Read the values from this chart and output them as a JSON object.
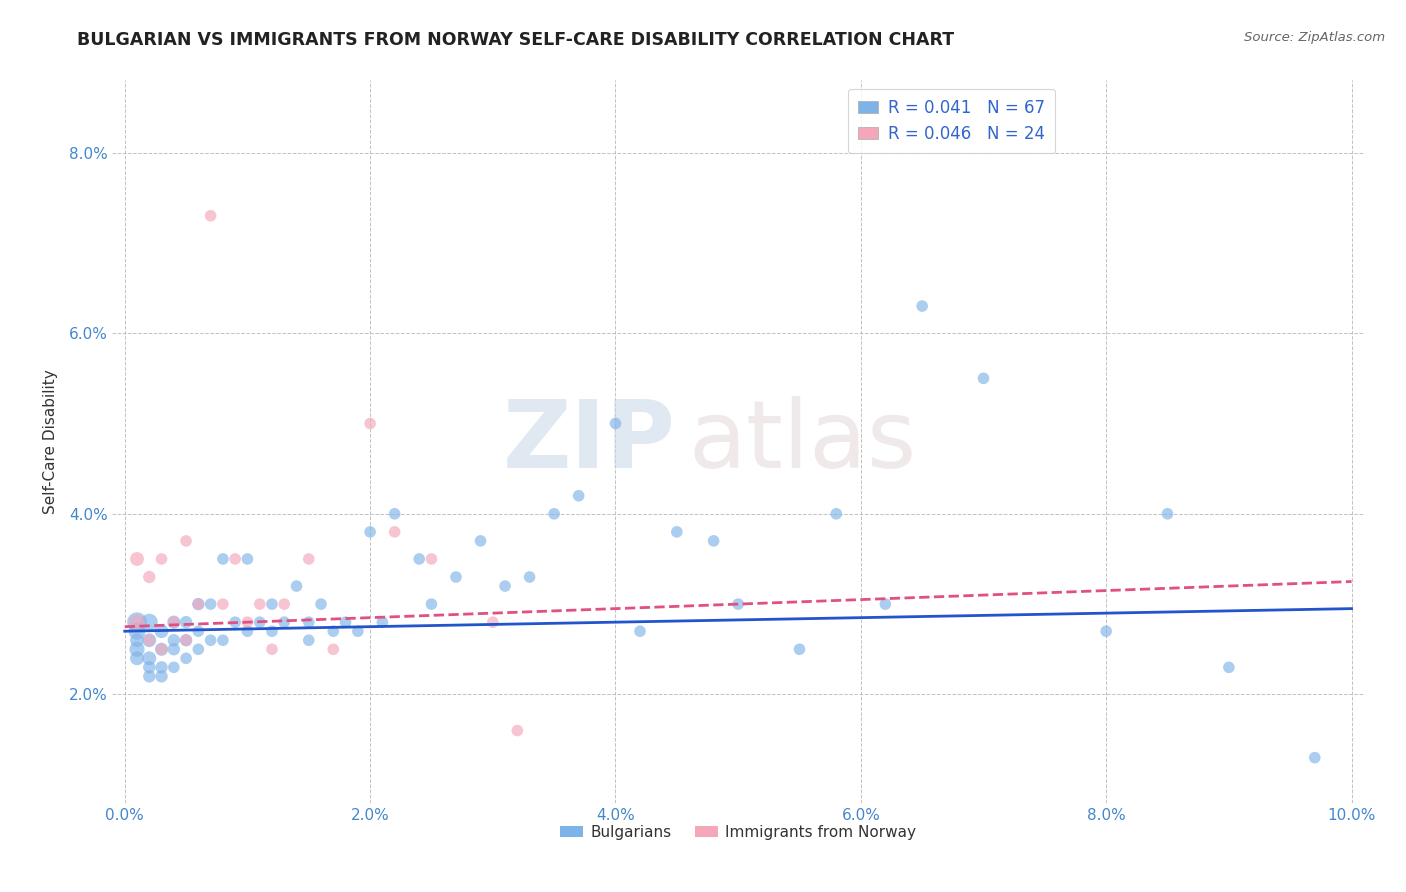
{
  "title": "BULGARIAN VS IMMIGRANTS FROM NORWAY SELF-CARE DISABILITY CORRELATION CHART",
  "source": "Source: ZipAtlas.com",
  "ylabel": "Self-Care Disability",
  "xlim": [
    -0.001,
    0.101
  ],
  "ylim": [
    0.008,
    0.088
  ],
  "xticks": [
    0.0,
    0.02,
    0.04,
    0.06,
    0.08,
    0.1
  ],
  "yticks": [
    0.02,
    0.04,
    0.06,
    0.08
  ],
  "bulgarian_color": "#7EB3E8",
  "norway_color": "#F4A7B9",
  "bulgarian_line_color": "#2255CC",
  "norway_line_color": "#E05080",
  "bulgarian_R": 0.041,
  "bulgarian_N": 67,
  "norway_R": 0.046,
  "norway_N": 24,
  "legend_labels": [
    "Bulgarians",
    "Immigrants from Norway"
  ],
  "watermark_zip": "ZIP",
  "watermark_atlas": "atlas",
  "bg_color": "#ffffff",
  "grid_color": "#bbbbbb",
  "bulgarian_scatter_x": [
    0.001,
    0.001,
    0.001,
    0.001,
    0.001,
    0.002,
    0.002,
    0.002,
    0.002,
    0.002,
    0.003,
    0.003,
    0.003,
    0.003,
    0.004,
    0.004,
    0.004,
    0.004,
    0.005,
    0.005,
    0.005,
    0.006,
    0.006,
    0.006,
    0.007,
    0.007,
    0.008,
    0.008,
    0.009,
    0.01,
    0.01,
    0.011,
    0.012,
    0.012,
    0.013,
    0.014,
    0.015,
    0.015,
    0.016,
    0.017,
    0.018,
    0.019,
    0.02,
    0.021,
    0.022,
    0.024,
    0.025,
    0.027,
    0.029,
    0.031,
    0.033,
    0.035,
    0.037,
    0.04,
    0.042,
    0.045,
    0.048,
    0.05,
    0.055,
    0.058,
    0.062,
    0.065,
    0.07,
    0.08,
    0.085,
    0.09,
    0.097
  ],
  "bulgarian_scatter_y": [
    0.028,
    0.027,
    0.025,
    0.024,
    0.026,
    0.028,
    0.026,
    0.024,
    0.023,
    0.022,
    0.027,
    0.025,
    0.023,
    0.022,
    0.028,
    0.026,
    0.025,
    0.023,
    0.028,
    0.026,
    0.024,
    0.03,
    0.027,
    0.025,
    0.03,
    0.026,
    0.035,
    0.026,
    0.028,
    0.035,
    0.027,
    0.028,
    0.03,
    0.027,
    0.028,
    0.032,
    0.028,
    0.026,
    0.03,
    0.027,
    0.028,
    0.027,
    0.038,
    0.028,
    0.04,
    0.035,
    0.03,
    0.033,
    0.037,
    0.032,
    0.033,
    0.04,
    0.042,
    0.05,
    0.027,
    0.038,
    0.037,
    0.03,
    0.025,
    0.04,
    0.03,
    0.063,
    0.055,
    0.027,
    0.04,
    0.023,
    0.013
  ],
  "bulgarian_scatter_size": [
    200,
    150,
    120,
    100,
    100,
    150,
    100,
    100,
    80,
    80,
    100,
    90,
    80,
    80,
    90,
    80,
    80,
    70,
    80,
    80,
    70,
    80,
    70,
    70,
    70,
    70,
    70,
    70,
    70,
    70,
    70,
    70,
    70,
    70,
    70,
    70,
    70,
    70,
    70,
    70,
    70,
    70,
    70,
    70,
    70,
    70,
    70,
    70,
    70,
    70,
    70,
    70,
    70,
    70,
    70,
    70,
    70,
    70,
    70,
    70,
    70,
    70,
    70,
    70,
    70,
    70,
    70
  ],
  "norway_scatter_x": [
    0.001,
    0.001,
    0.002,
    0.002,
    0.003,
    0.003,
    0.004,
    0.005,
    0.005,
    0.006,
    0.007,
    0.008,
    0.009,
    0.01,
    0.011,
    0.012,
    0.013,
    0.015,
    0.017,
    0.02,
    0.022,
    0.025,
    0.03,
    0.032
  ],
  "norway_scatter_y": [
    0.028,
    0.035,
    0.033,
    0.026,
    0.035,
    0.025,
    0.028,
    0.037,
    0.026,
    0.03,
    0.073,
    0.03,
    0.035,
    0.028,
    0.03,
    0.025,
    0.03,
    0.035,
    0.025,
    0.05,
    0.038,
    0.035,
    0.028,
    0.016
  ],
  "norway_scatter_size": [
    120,
    100,
    80,
    70,
    70,
    70,
    70,
    70,
    70,
    70,
    70,
    70,
    70,
    70,
    70,
    70,
    70,
    70,
    70,
    70,
    70,
    70,
    70,
    70
  ],
  "bulg_trend_x": [
    0.0,
    0.1
  ],
  "bulg_trend_y": [
    0.027,
    0.0295
  ],
  "norw_trend_x": [
    0.0,
    0.1
  ],
  "norw_trend_y": [
    0.0275,
    0.0325
  ]
}
